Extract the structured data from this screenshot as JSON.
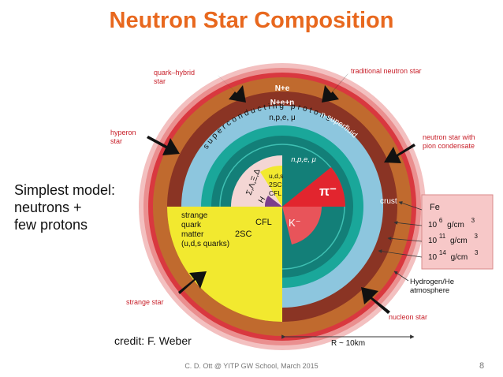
{
  "slide": {
    "title": "Neutron Star Composition",
    "side_text": [
      "Simplest model:",
      "neutrons +",
      "few protons"
    ],
    "credit": "credit: F. Weber",
    "footer": "C. D. Ott @ YITP GW School, March 2015",
    "page_number": "8"
  },
  "diagram": {
    "outer_labels": {
      "quark_hybrid_star": [
        "quark–hybrid",
        "star"
      ],
      "traditional_neutron_star": "traditional neutron star",
      "hyperon_star": [
        "hyperon",
        "star"
      ],
      "neutron_star_pion": [
        "neutron star with",
        "pion condensate"
      ],
      "strange_star": "strange star",
      "nucleon_star": "nucleon star",
      "hydrogen_he": [
        "Hydrogen/He",
        "atmosphere"
      ],
      "crust": "crust",
      "radius": "R ~ 10km"
    },
    "layer_labels": {
      "ne": "N+e",
      "nen": "N+e+n",
      "npe_mu": "n,p,e, μ",
      "n_superfluid": "n superfluid",
      "superconducting_protons": "superconducting protons",
      "npe_mu_inner": "n,p,e, μ",
      "uds": "u,d,s",
      "twosc": "2SC",
      "cfl_small": "CFL",
      "hyperons": "Σ,Λ,Ξ,Δ",
      "h": "H",
      "pi_minus": "π⁻",
      "k_minus": "K⁻",
      "cfl": "CFL",
      "twosc_big": "2SC",
      "strange_quark_matter": [
        "strange",
        "quark",
        "matter",
        "(u,d,s quarks)"
      ]
    },
    "density_box": {
      "element": "Fe",
      "rows": [
        {
          "base": "10",
          "exp": "6",
          "unit": "g/cm",
          "unit_exp": "3"
        },
        {
          "base": "10",
          "exp": "11",
          "unit": "g/cm",
          "unit_exp": "3"
        },
        {
          "base": "10",
          "exp": "14",
          "unit": "g/cm",
          "unit_exp": "3"
        }
      ]
    },
    "colors": {
      "outer_pink": "#f3c0c0",
      "mid_pink": "#ea8f8f",
      "red_ring": "#d9383f",
      "orange_brown": "#c06a2e",
      "dark_brown": "#8a3424",
      "light_blue": "#8dc6de",
      "teal": "#1aa79a",
      "dark_teal": "#137f78",
      "yellow": "#f2e92f",
      "pale_pink": "#f4d6d4",
      "red_sector": "#e2252e",
      "purple": "#7b3f8c",
      "box_fill": "#f7c8c8",
      "title_orange": "#e8681e"
    }
  }
}
